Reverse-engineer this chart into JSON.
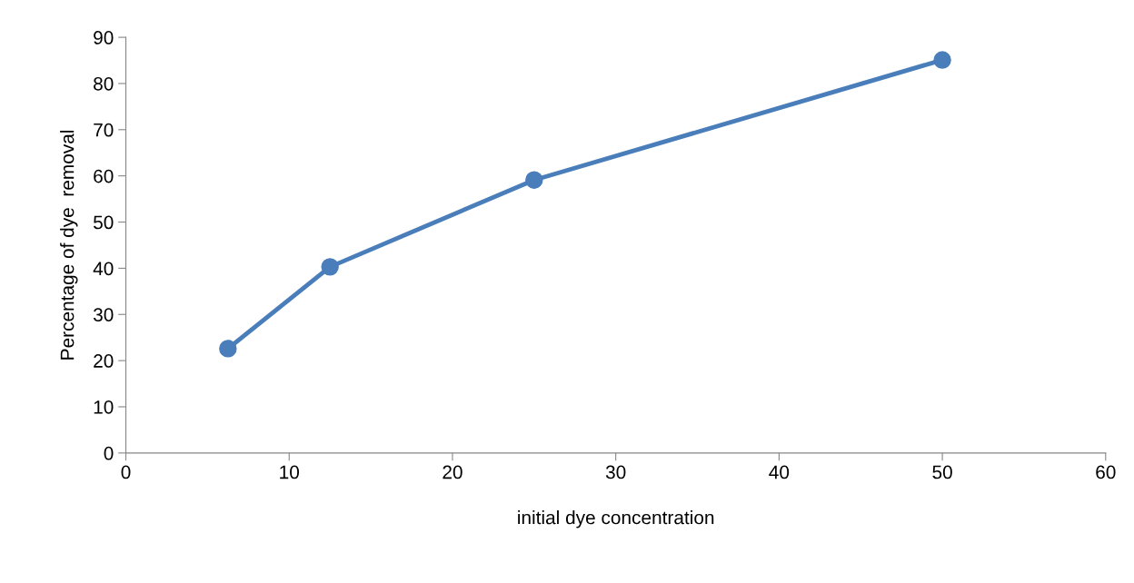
{
  "chart_data": {
    "type": "line",
    "xlabel": "initial dye concentration",
    "ylabel": "Percentage of dye  removal",
    "x": [
      6.25,
      12.5,
      25,
      50
    ],
    "series": [
      {
        "color": "#4a7ebb",
        "values": [
          22.6,
          40.3,
          59.1,
          85.1
        ]
      }
    ],
    "xlim": [
      0,
      60
    ],
    "xticks": [
      0,
      10,
      20,
      30,
      40,
      50,
      60
    ],
    "ylim": [
      0,
      90
    ],
    "yticks": [
      0,
      10,
      20,
      30,
      40,
      50,
      60,
      70,
      80,
      90
    ],
    "marker": "circle",
    "line_style": "solid",
    "grid": false
  }
}
